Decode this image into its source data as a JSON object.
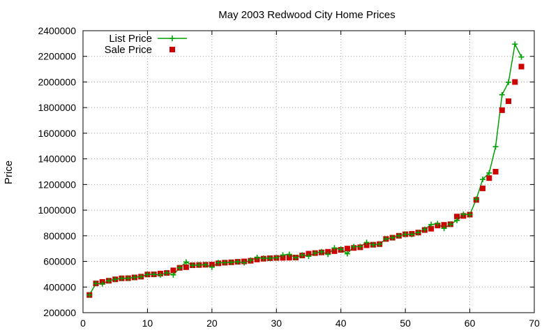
{
  "chart_data": {
    "type": "line",
    "title": "May 2003 Redwood City Home Prices",
    "xlabel": "",
    "ylabel": "Price",
    "xlim": [
      0,
      70
    ],
    "ylim": [
      200000,
      2400000
    ],
    "x_ticks": [
      "0",
      "10",
      "20",
      "30",
      "40",
      "50",
      "60",
      "70"
    ],
    "y_ticks": [
      "200000",
      "400000",
      "600000",
      "800000",
      "1000000",
      "1200000",
      "1400000",
      "1600000",
      "1800000",
      "2000000",
      "2200000",
      "2400000"
    ],
    "grid": true,
    "legend_position": "top-left",
    "x": [
      1,
      2,
      3,
      4,
      5,
      6,
      7,
      8,
      9,
      10,
      11,
      12,
      13,
      14,
      15,
      16,
      17,
      18,
      19,
      20,
      21,
      22,
      23,
      24,
      25,
      26,
      27,
      28,
      29,
      30,
      31,
      32,
      33,
      34,
      35,
      36,
      37,
      38,
      39,
      40,
      41,
      42,
      43,
      44,
      45,
      46,
      47,
      48,
      49,
      50,
      51,
      52,
      53,
      54,
      55,
      56,
      57,
      58,
      59,
      60,
      61,
      62,
      63,
      64,
      65,
      66,
      67,
      68
    ],
    "series": [
      {
        "name": "List Price",
        "style": "line+plus",
        "color": "#00a000",
        "values": [
          338000,
          428000,
          425000,
          449000,
          460000,
          468000,
          469000,
          475000,
          481000,
          498000,
          499000,
          495000,
          510000,
          495000,
          550000,
          595000,
          570000,
          572000,
          574000,
          555000,
          590000,
          590000,
          593000,
          597000,
          590000,
          610000,
          630000,
          625000,
          625000,
          629000,
          650000,
          655000,
          630000,
          650000,
          640000,
          665000,
          675000,
          655000,
          705000,
          695000,
          660000,
          715000,
          716000,
          748000,
          730000,
          735000,
          775000,
          785000,
          800000,
          812000,
          810000,
          825000,
          850000,
          888000,
          895000,
          858000,
          890000,
          920000,
          968000,
          965000,
          1085000,
          1240000,
          1290000,
          1495000,
          1900000,
          1998000,
          2295000,
          2195000
        ]
      },
      {
        "name": "Sale Price",
        "style": "square",
        "color": "#cc0000",
        "values": [
          338000,
          428000,
          440000,
          449000,
          460000,
          468000,
          469000,
          475000,
          481000,
          498000,
          499000,
          505000,
          510000,
          530000,
          550000,
          555000,
          570000,
          572000,
          574000,
          575000,
          585000,
          590000,
          593000,
          597000,
          600000,
          605000,
          615000,
          621000,
          625000,
          627000,
          628000,
          629000,
          630000,
          646000,
          660000,
          665000,
          670000,
          675000,
          680000,
          690000,
          700000,
          705000,
          710000,
          726000,
          730000,
          735000,
          775000,
          785000,
          800000,
          812000,
          815000,
          825000,
          845000,
          855000,
          880000,
          885000,
          890000,
          950000,
          955000,
          965000,
          1080000,
          1170000,
          1250000,
          1300000,
          1780000,
          1850000,
          2000000,
          2120000
        ]
      }
    ]
  }
}
